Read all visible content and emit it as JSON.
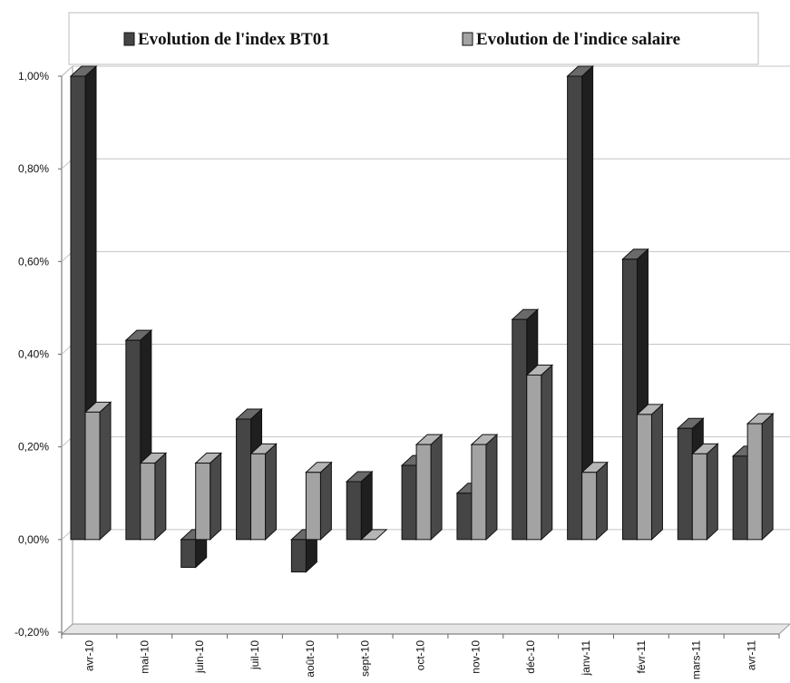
{
  "chart_data": {
    "type": "bar",
    "title": "",
    "xlabel": "",
    "ylabel": "",
    "categories": [
      "avr-10",
      "mai-10",
      "juin-10",
      "juil-10",
      "août-10",
      "sept-10",
      "oct-10",
      "nov-10",
      "déc-10",
      "janv-11",
      "févr-11",
      "mars-11",
      "avr-11"
    ],
    "series": [
      {
        "name": "Evolution de l'index BT01",
        "color": "#454545",
        "values": [
          1.0,
          0.43,
          -0.06,
          0.26,
          -0.07,
          0.125,
          0.16,
          0.1,
          0.475,
          1.0,
          0.605,
          0.24,
          0.18
        ]
      },
      {
        "name": "Evolution de l'indice salaire",
        "color": "#a3a3a3",
        "values": [
          0.275,
          0.165,
          0.165,
          0.185,
          0.145,
          0.0,
          0.205,
          0.205,
          0.355,
          0.145,
          0.27,
          0.185,
          0.25
        ]
      }
    ],
    "ylim": [
      -0.2,
      1.0
    ],
    "yticks": [
      -0.2,
      0.0,
      0.2,
      0.4,
      0.6,
      0.8,
      1.0
    ],
    "ytick_labels": [
      "-0,20%",
      "0,00%",
      "0,20%",
      "0,40%",
      "0,60%",
      "0,80%",
      "1,00%"
    ],
    "grid": true,
    "legend_position": "top",
    "style": "3d"
  }
}
